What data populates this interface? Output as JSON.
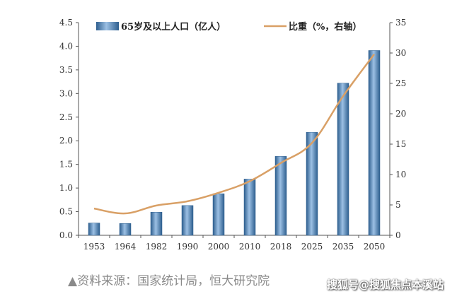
{
  "chart_data": {
    "type": "bar",
    "categories": [
      "1953",
      "1964",
      "1982",
      "1990",
      "2000",
      "2010",
      "2018",
      "2025",
      "2035",
      "2050"
    ],
    "series": [
      {
        "name": "65岁及以上人口（亿人）",
        "type": "bar",
        "axis": "left",
        "values": [
          0.26,
          0.25,
          0.49,
          0.63,
          0.88,
          1.19,
          1.67,
          2.18,
          3.22,
          3.91
        ]
      },
      {
        "name": "比重（%，右轴）",
        "type": "line",
        "axis": "right",
        "values": [
          4.4,
          3.6,
          4.9,
          5.6,
          7.0,
          8.9,
          11.9,
          15.2,
          22.9,
          29.8
        ]
      }
    ],
    "y_left": {
      "min": 0,
      "max": 4.5,
      "step": 0.5,
      "tick_labels": [
        "0.0",
        "0.5",
        "1.0",
        "1.5",
        "2.0",
        "2.5",
        "3.0",
        "3.5",
        "4.0",
        "4.5"
      ]
    },
    "y_right": {
      "min": 0,
      "max": 35,
      "step": 5,
      "tick_labels": [
        "0",
        "5",
        "10",
        "15",
        "20",
        "25",
        "30",
        "35"
      ]
    },
    "legend": {
      "position": "top",
      "bar_label": "65岁及以上人口（亿人）",
      "line_label": "比重（%，右轴）"
    },
    "colors": {
      "bar": "#4f81bd",
      "bar_dark": "#2e5f8f",
      "bar_light": "#9cc0e4",
      "line": "#d9a066",
      "axis": "#555555"
    }
  },
  "source": "▲资料来源：国家统计局，恒大研究院",
  "watermark": "搜狐号@搜狐焦点本溪站"
}
